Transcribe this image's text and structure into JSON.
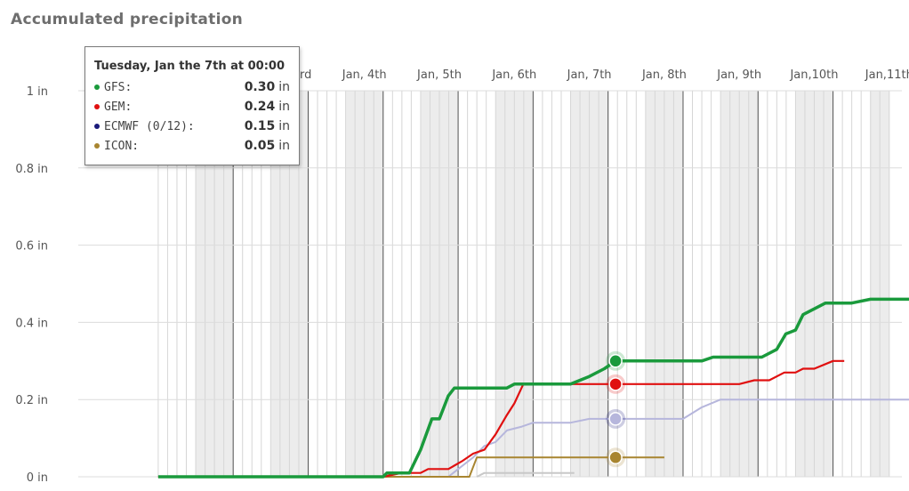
{
  "title": "Accumulated precipitation",
  "chart_data": {
    "type": "line",
    "y_ticks": [
      "0 in",
      "0.2 in",
      "0.4 in",
      "0.6 in",
      "0.8 in",
      "1 in"
    ],
    "ylim": [
      0,
      1
    ],
    "x_range_days": [
      1.25,
      12.7
    ],
    "x_tick_labels": [
      {
        "day": 3,
        "label": "Jan, 3rd"
      },
      {
        "day": 4,
        "label": "Jan, 4th"
      },
      {
        "day": 5,
        "label": "Jan, 5th"
      },
      {
        "day": 6,
        "label": "Jan, 6th"
      },
      {
        "day": 7,
        "label": "Jan, 7th"
      },
      {
        "day": 8,
        "label": "Jan, 8th"
      },
      {
        "day": 9,
        "label": "Jan, 9th"
      },
      {
        "day": 10,
        "label": "Jan,10th"
      },
      {
        "day": 11,
        "label": "Jan,11th"
      }
    ],
    "series": [
      {
        "name": "GFS",
        "color": "#1a9a3c",
        "highlight_value": 0.3,
        "points": [
          [
            1.25,
            0
          ],
          [
            4.25,
            0
          ],
          [
            4.3,
            0.01
          ],
          [
            4.6,
            0.01
          ],
          [
            4.75,
            0.07
          ],
          [
            4.9,
            0.15
          ],
          [
            5.0,
            0.15
          ],
          [
            5.12,
            0.21
          ],
          [
            5.2,
            0.23
          ],
          [
            5.6,
            0.23
          ],
          [
            5.9,
            0.23
          ],
          [
            6.0,
            0.24
          ],
          [
            6.75,
            0.24
          ],
          [
            7.0,
            0.26
          ],
          [
            7.2,
            0.28
          ],
          [
            7.35,
            0.3
          ],
          [
            7.6,
            0.3
          ],
          [
            8.5,
            0.3
          ],
          [
            8.65,
            0.31
          ],
          [
            9.3,
            0.31
          ],
          [
            9.5,
            0.33
          ],
          [
            9.62,
            0.37
          ],
          [
            9.75,
            0.38
          ],
          [
            9.85,
            0.42
          ],
          [
            10.15,
            0.45
          ],
          [
            10.5,
            0.45
          ],
          [
            10.75,
            0.46
          ],
          [
            12.7,
            0.46
          ]
        ]
      },
      {
        "name": "GEM",
        "color": "#e01010",
        "highlight_value": 0.24,
        "points": [
          [
            1.25,
            0
          ],
          [
            4.25,
            0
          ],
          [
            4.5,
            0.01
          ],
          [
            4.75,
            0.01
          ],
          [
            4.85,
            0.02
          ],
          [
            5.12,
            0.02
          ],
          [
            5.3,
            0.04
          ],
          [
            5.45,
            0.06
          ],
          [
            5.6,
            0.07
          ],
          [
            5.75,
            0.11
          ],
          [
            5.9,
            0.16
          ],
          [
            6.0,
            0.19
          ],
          [
            6.12,
            0.24
          ],
          [
            7.5,
            0.24
          ],
          [
            9.0,
            0.24
          ],
          [
            9.2,
            0.25
          ],
          [
            9.4,
            0.25
          ],
          [
            9.6,
            0.27
          ],
          [
            9.75,
            0.27
          ],
          [
            9.85,
            0.28
          ],
          [
            10.0,
            0.28
          ],
          [
            10.25,
            0.3
          ],
          [
            10.4,
            0.3
          ]
        ]
      },
      {
        "name": "ECMWF (0/12)",
        "color": "#1a1a7a",
        "line_color": "#b6b6dc",
        "highlight_value": 0.15,
        "points": [
          [
            1.25,
            0
          ],
          [
            5.12,
            0
          ],
          [
            5.25,
            0.02
          ],
          [
            5.45,
            0.05
          ],
          [
            5.6,
            0.08
          ],
          [
            5.75,
            0.09
          ],
          [
            5.9,
            0.12
          ],
          [
            6.1,
            0.13
          ],
          [
            6.25,
            0.14
          ],
          [
            6.75,
            0.14
          ],
          [
            7.0,
            0.15
          ],
          [
            8.25,
            0.15
          ],
          [
            8.5,
            0.18
          ],
          [
            8.75,
            0.2
          ],
          [
            12.6,
            0.2
          ]
        ]
      },
      {
        "name": "ICON",
        "color": "#a88530",
        "highlight_value": 0.05,
        "points": [
          [
            1.25,
            0
          ],
          [
            5.4,
            0
          ],
          [
            5.5,
            0.05
          ],
          [
            7.05,
            0.05
          ],
          [
            8.0,
            0.05
          ]
        ]
      },
      {
        "name": "",
        "color": "#c8c8c8",
        "points": [
          [
            5.5,
            0
          ],
          [
            5.6,
            0.01
          ],
          [
            6.8,
            0.01
          ]
        ]
      }
    ]
  },
  "tooltip": {
    "header": "Tuesday, Jan the 7th at 00:00",
    "rows": [
      {
        "name": "GFS:",
        "value": "0.30",
        "unit": "in",
        "color": "#1a9a3c"
      },
      {
        "name": "GEM:",
        "value": "0.24",
        "unit": "in",
        "color": "#e01010"
      },
      {
        "name": "ECMWF (0/12):",
        "value": "0.15",
        "unit": "in",
        "color": "#1a1a7a"
      },
      {
        "name": "ICON:",
        "value": "0.05",
        "unit": "in",
        "color": "#a88530"
      }
    ]
  },
  "hover_day": 7.35
}
